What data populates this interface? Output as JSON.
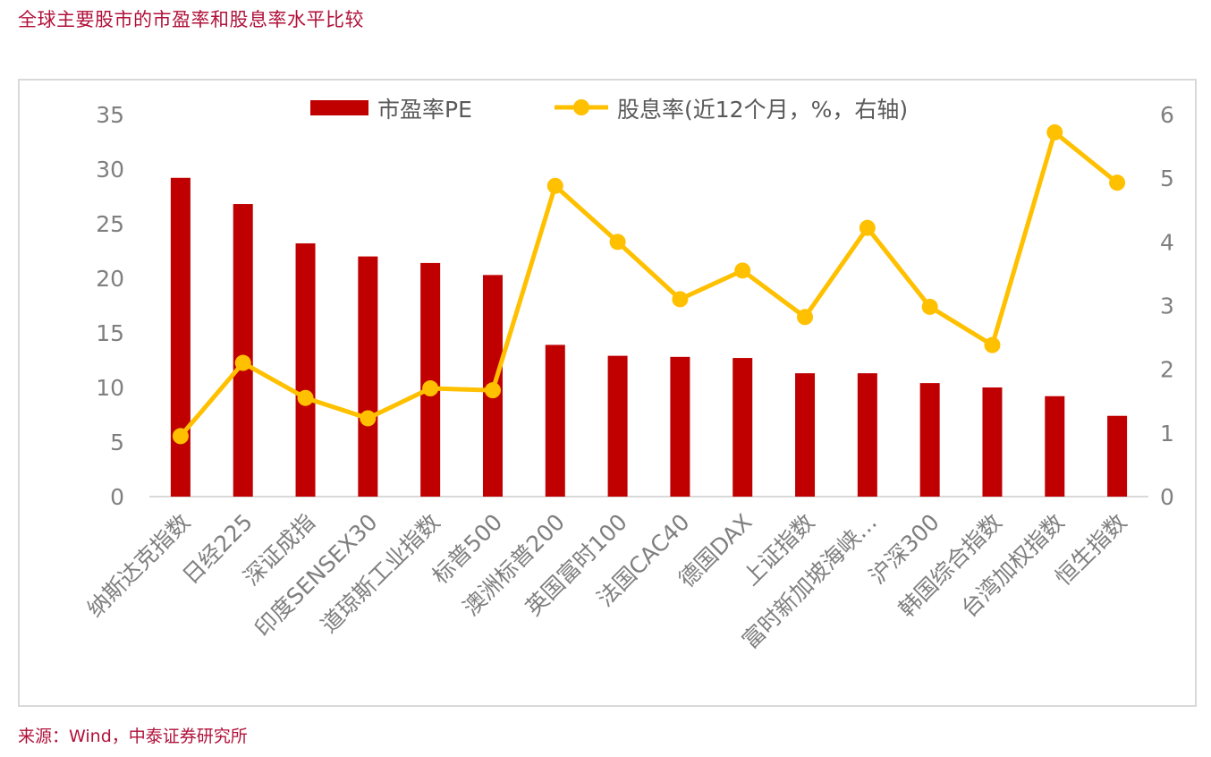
{
  "page": {
    "title": "全球主要股市的市盈率和股息率水平比较",
    "source": "来源：Wind，中泰证券研究所"
  },
  "chart_data": {
    "type": "bar+line",
    "title": "全球主要股市的市盈率和股息率水平比较",
    "categories": [
      "纳斯达克指数",
      "日经225",
      "深证成指",
      "印度SENSEX30",
      "道琼斯工业指数",
      "标普500",
      "澳洲标普200",
      "英国富时100",
      "法国CAC40",
      "德国DAX",
      "上证指数",
      "富时新加坡海峡…",
      "沪深300",
      "韩国综合指数",
      "台湾加权指数",
      "恒生指数"
    ],
    "series": [
      {
        "name": "市盈率PE",
        "type": "bar",
        "axis": "left",
        "color": "#c00000",
        "values": [
          29.2,
          26.8,
          23.2,
          22.0,
          21.4,
          20.3,
          13.9,
          12.9,
          12.8,
          12.7,
          11.3,
          11.3,
          10.4,
          10.0,
          9.2,
          7.4
        ]
      },
      {
        "name": "股息率(近12个月，%，右轴)",
        "type": "line",
        "axis": "right",
        "color": "#ffc000",
        "values": [
          0.95,
          2.1,
          1.55,
          1.23,
          1.7,
          1.67,
          4.88,
          4.0,
          3.1,
          3.55,
          2.82,
          4.22,
          2.98,
          2.38,
          5.72,
          4.93
        ]
      }
    ],
    "y_left": {
      "min": 0,
      "max": 35,
      "ticks": [
        0,
        5,
        10,
        15,
        20,
        25,
        30,
        35
      ]
    },
    "y_right": {
      "min": 0,
      "max": 6,
      "ticks": [
        0,
        1,
        2,
        3,
        4,
        5,
        6
      ]
    },
    "grid": false,
    "legend": "top"
  }
}
